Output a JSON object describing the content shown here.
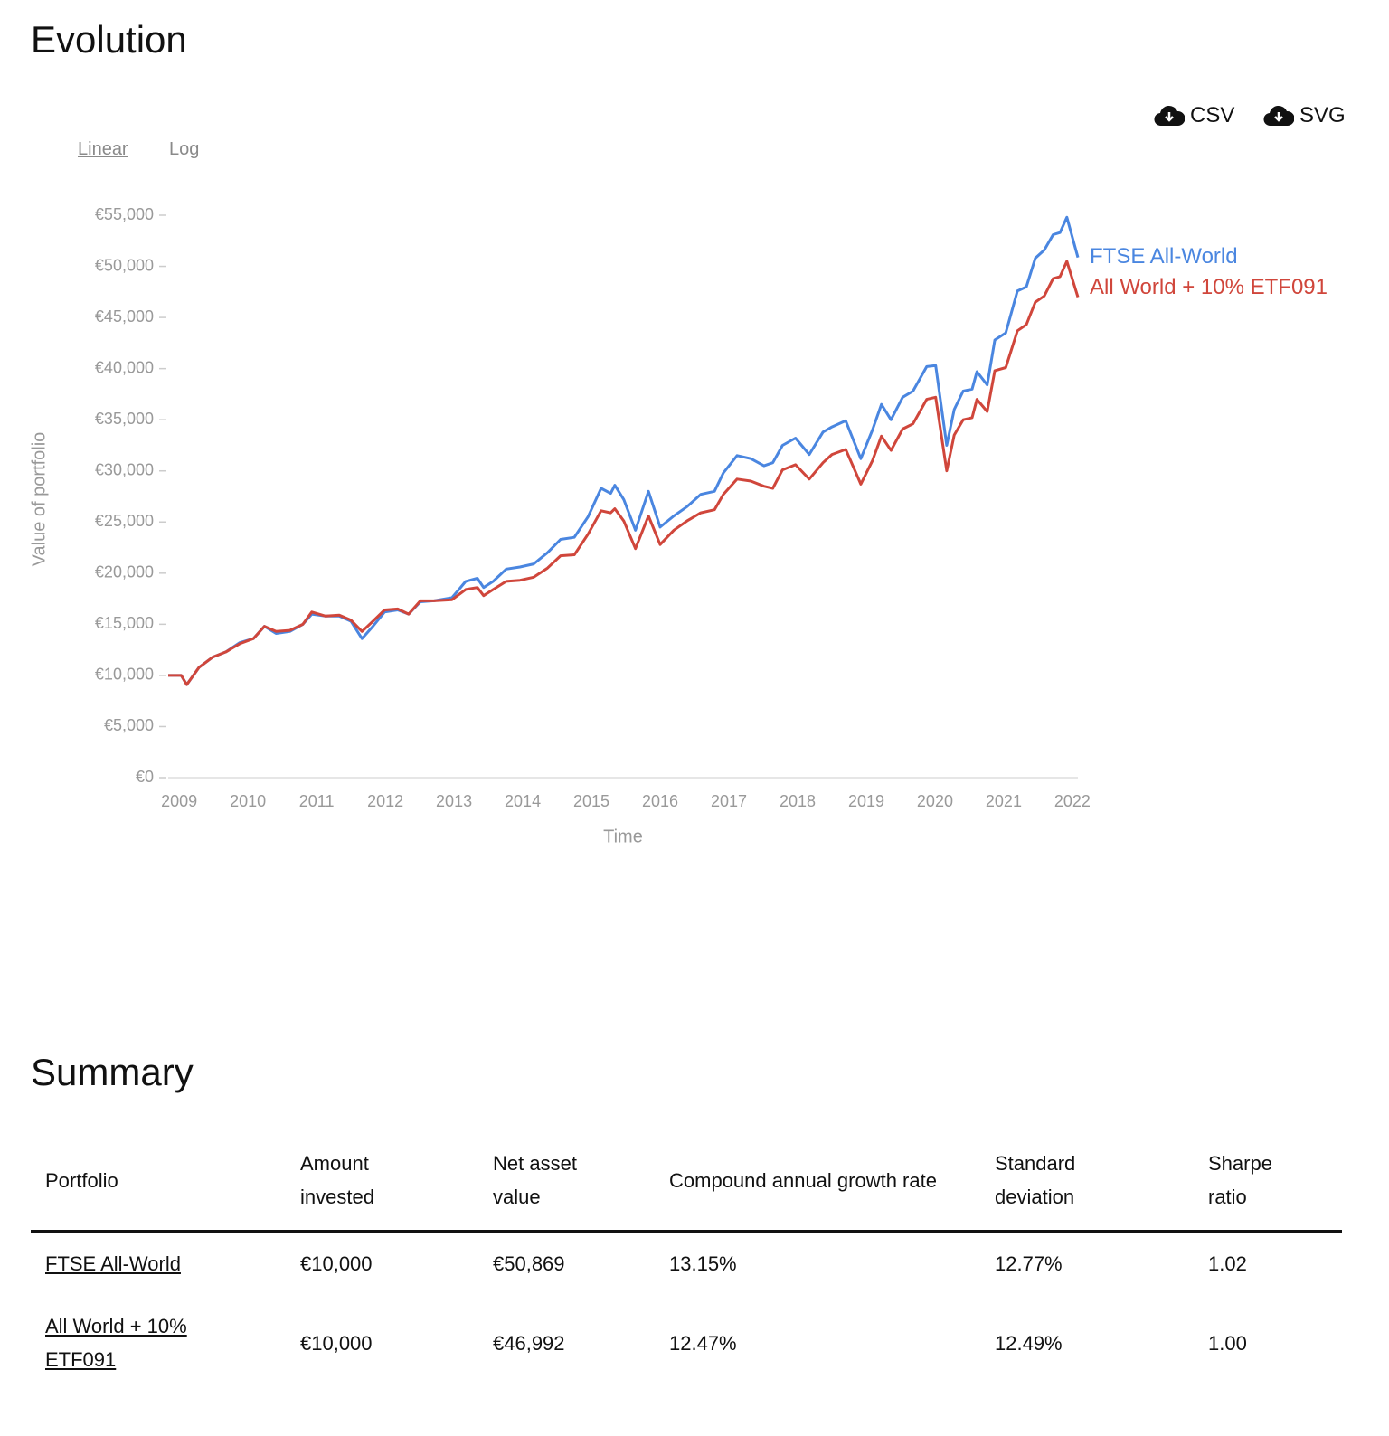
{
  "header": {
    "title": "Evolution"
  },
  "scale_options": [
    "Linear",
    "Log"
  ],
  "downloads": [
    "CSV",
    "SVG"
  ],
  "chart_data": {
    "type": "line",
    "log_scale": false,
    "grid": false,
    "ylabel": "Value of portfolio",
    "xlabel": "Time",
    "x": [
      2008.84,
      2009.03,
      2009.11,
      2009.29,
      2009.49,
      2009.68,
      2009.88,
      2010.08,
      2010.24,
      2010.41,
      2010.61,
      2010.8,
      2010.93,
      2011.13,
      2011.33,
      2011.5,
      2011.66,
      2011.82,
      2011.99,
      2012.18,
      2012.34,
      2012.51,
      2012.71,
      2012.97,
      2013.17,
      2013.34,
      2013.43,
      2013.57,
      2013.76,
      2013.96,
      2014.16,
      2014.36,
      2014.55,
      2014.75,
      2014.95,
      2015.14,
      2015.28,
      2015.34,
      2015.47,
      2015.64,
      2015.83,
      2016.0,
      2016.2,
      2016.39,
      2016.59,
      2016.79,
      2016.92,
      2017.12,
      2017.32,
      2017.51,
      2017.64,
      2017.78,
      2017.97,
      2018.17,
      2018.37,
      2018.5,
      2018.7,
      2018.83,
      2018.92,
      2019.09,
      2019.22,
      2019.36,
      2019.53,
      2019.68,
      2019.88,
      2020.01,
      2020.17,
      2020.28,
      2020.41,
      2020.54,
      2020.61,
      2020.76,
      2020.87,
      2021.03,
      2021.2,
      2021.33,
      2021.46,
      2021.59,
      2021.72,
      2021.82,
      2021.92,
      2022.08
    ],
    "series": [
      {
        "name": "FTSE All-World",
        "color": "#4a86e0",
        "values": [
          10000,
          10000,
          9100,
          10800,
          11800,
          12300,
          13200,
          13600,
          14800,
          14100,
          14300,
          15000,
          16000,
          15800,
          15800,
          15300,
          13600,
          14800,
          16200,
          16400,
          16000,
          17200,
          17300,
          17600,
          19200,
          19500,
          18600,
          19200,
          20400,
          20600,
          20900,
          22000,
          23300,
          23500,
          25500,
          28300,
          27800,
          28600,
          27200,
          24200,
          28000,
          24500,
          25600,
          26500,
          27700,
          28000,
          29800,
          31500,
          31200,
          30500,
          30800,
          32500,
          33200,
          31600,
          33800,
          34300,
          34900,
          32700,
          31200,
          34000,
          36500,
          35000,
          37200,
          37800,
          40200,
          40300,
          32500,
          36000,
          37800,
          38000,
          39700,
          38400,
          42800,
          43500,
          47600,
          48000,
          50800,
          51600,
          53100,
          53300,
          54800,
          50869
        ]
      },
      {
        "name": "All World + 10% ETF091",
        "color": "#d0463b",
        "values": [
          10000,
          10000,
          9100,
          10800,
          11800,
          12300,
          13100,
          13600,
          14800,
          14300,
          14400,
          15000,
          16200,
          15800,
          15900,
          15400,
          14300,
          15300,
          16400,
          16500,
          16000,
          17300,
          17300,
          17400,
          18400,
          18600,
          17800,
          18400,
          19200,
          19300,
          19600,
          20500,
          21700,
          21800,
          23800,
          26100,
          25900,
          26300,
          25100,
          22400,
          25600,
          22800,
          24200,
          25100,
          25900,
          26200,
          27700,
          29200,
          29000,
          28500,
          28300,
          30100,
          30600,
          29200,
          30800,
          31600,
          32100,
          30100,
          28700,
          31000,
          33400,
          32000,
          34100,
          34600,
          37000,
          37200,
          30000,
          33500,
          35000,
          35200,
          37000,
          35800,
          39800,
          40100,
          43700,
          44300,
          46500,
          47100,
          48800,
          49000,
          50500,
          46992
        ]
      }
    ],
    "xlim": [
      2008.84,
      2022.08
    ],
    "xticks": [
      2009,
      2010,
      2011,
      2012,
      2013,
      2014,
      2015,
      2016,
      2017,
      2018,
      2019,
      2020,
      2021,
      2022
    ],
    "ylim": [
      0,
      55000
    ],
    "yticks": [
      {
        "value": 0,
        "label": "€0"
      },
      {
        "value": 5000,
        "label": "€5,000"
      },
      {
        "value": 10000,
        "label": "€10,000"
      },
      {
        "value": 15000,
        "label": "€15,000"
      },
      {
        "value": 20000,
        "label": "€20,000"
      },
      {
        "value": 25000,
        "label": "€25,000"
      },
      {
        "value": 30000,
        "label": "€30,000"
      },
      {
        "value": 35000,
        "label": "€35,000"
      },
      {
        "value": 40000,
        "label": "€40,000"
      },
      {
        "value": 45000,
        "label": "€45,000"
      },
      {
        "value": 50000,
        "label": "€50,000"
      },
      {
        "value": 55000,
        "label": "€55,000"
      }
    ]
  },
  "summary": {
    "title": "Summary",
    "columns": [
      "Portfolio",
      "Amount invested",
      "Net asset value",
      "Compound annual growth rate",
      "Standard deviation",
      "Sharpe ratio"
    ],
    "rows": [
      [
        "FTSE All-World",
        "€10,000",
        "€50,869",
        "13.15%",
        "12.77%",
        "1.02"
      ],
      [
        "All World + 10% ETF091",
        "€10,000",
        "€46,992",
        "12.47%",
        "12.49%",
        "1.00"
      ]
    ]
  }
}
